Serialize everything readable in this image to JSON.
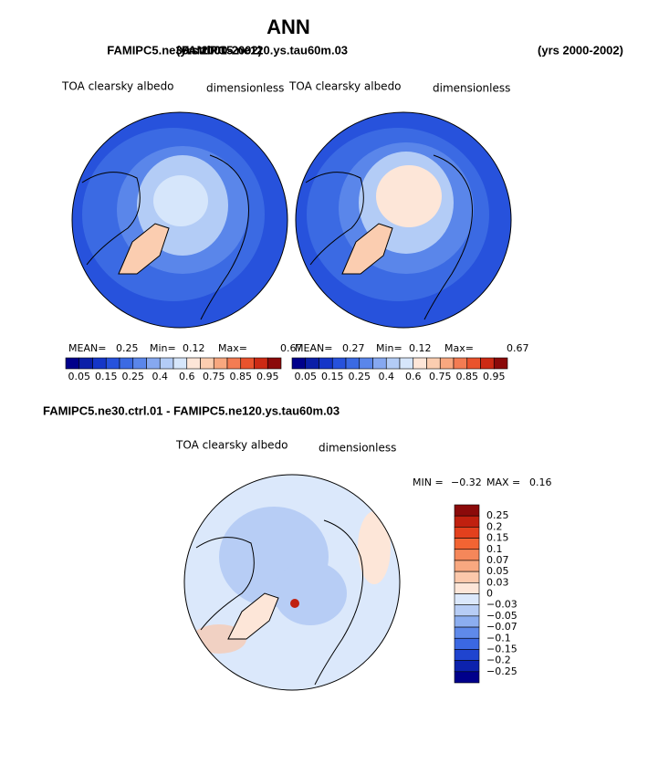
{
  "title": "ANN",
  "panels": [
    {
      "case": "FAMIPC5.ne30.ctrl.01",
      "years": "(yrs 2000-2002)",
      "variable": "TOA clearsky albedo",
      "units": "dimensionless",
      "stats": [
        "MEAN=",
        "0.25",
        "Min=",
        "0.12",
        "Max=",
        "0.67"
      ]
    },
    {
      "case": "FAMIPC5.ne120.ys.tau60m.03",
      "years": "(yrs 2000-2002)",
      "variable": "TOA clearsky albedo",
      "units": "dimensionless",
      "stats": [
        "MEAN=",
        "0.27",
        "Min=",
        "0.12",
        "Max=",
        "0.67"
      ]
    }
  ],
  "colorbar": {
    "labels": [
      "0.05",
      "0.15",
      "0.25",
      "0.4",
      "0.6",
      "0.75",
      "0.85",
      "0.95"
    ],
    "colors": [
      "#00008b",
      "#0b1fa8",
      "#1536c8",
      "#2752dc",
      "#3b6ae3",
      "#5a86ea",
      "#86a8f0",
      "#b3ccf6",
      "#d6e6fb",
      "#fde6d8",
      "#fbcdb0",
      "#f8a77f",
      "#f37c53",
      "#e9532d",
      "#cc2a14",
      "#8b0a0a"
    ]
  },
  "difference": {
    "title": "FAMIPC5.ne30.ctrl.01 - FAMIPC5.ne120.ys.tau60m.03",
    "variable": "TOA clearsky albedo",
    "units": "dimensionless",
    "stats": [
      "MIN =",
      "−0.32",
      "MAX =",
      "0.16"
    ],
    "colorbar": {
      "labels": [
        "0.25",
        "0.2",
        "0.15",
        "0.1",
        "0.07",
        "0.05",
        "0.03",
        "0",
        "−0.03",
        "−0.05",
        "−0.07",
        "−0.1",
        "−0.15",
        "−0.2",
        "−0.25"
      ],
      "colors": [
        "#8b0a0a",
        "#c0200f",
        "#e3401d",
        "#f26433",
        "#f5875a",
        "#f8a880",
        "#fbc8ab",
        "#fde6d8",
        "#dbe8fb",
        "#b7cdf5",
        "#8caef0",
        "#5f8aea",
        "#3b68e2",
        "#1f44cf",
        "#0c22ad",
        "#00008b"
      ]
    }
  }
}
